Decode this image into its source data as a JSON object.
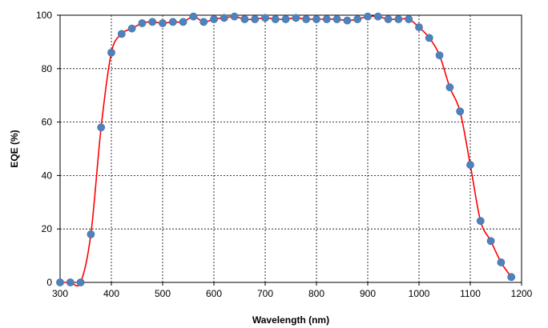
{
  "chart_data": {
    "type": "line",
    "title": "",
    "xlabel": "Wavelength (nm)",
    "ylabel": "EQE (%)",
    "xlim": [
      300,
      1200
    ],
    "ylim": [
      0,
      100
    ],
    "xticks": [
      "300",
      "400",
      "500",
      "600",
      "700",
      "800",
      "900",
      "1000",
      "1100",
      "1200"
    ],
    "yticks": [
      "0",
      "20",
      "40",
      "60",
      "80",
      "100"
    ],
    "grid": true,
    "legend": "none",
    "line_color": "#ff0000",
    "marker_color": "#4f81bd",
    "series": [
      {
        "x": [
          300,
          320,
          340,
          360,
          380,
          400,
          420,
          440,
          460,
          480,
          500,
          520,
          540,
          560,
          580,
          600,
          620,
          640,
          660,
          680,
          700,
          720,
          740,
          760,
          780,
          800,
          820,
          840,
          860,
          880,
          900,
          920,
          940,
          960,
          980,
          1000,
          1020,
          1040,
          1060,
          1080,
          1100,
          1120,
          1140,
          1160,
          1180
        ],
        "y": [
          0,
          0,
          0,
          18,
          58,
          86,
          93,
          95,
          97,
          97.5,
          97,
          97.5,
          97.5,
          99.5,
          97.5,
          98.5,
          99,
          99.5,
          98.5,
          98.5,
          99,
          98.5,
          98.5,
          99,
          98.5,
          98.5,
          98.5,
          98.5,
          98,
          98.5,
          99.5,
          99.5,
          98.5,
          98.5,
          98.5,
          95.5,
          91.5,
          85,
          73,
          64,
          44,
          23,
          15.5,
          7.5,
          2
        ]
      }
    ]
  }
}
